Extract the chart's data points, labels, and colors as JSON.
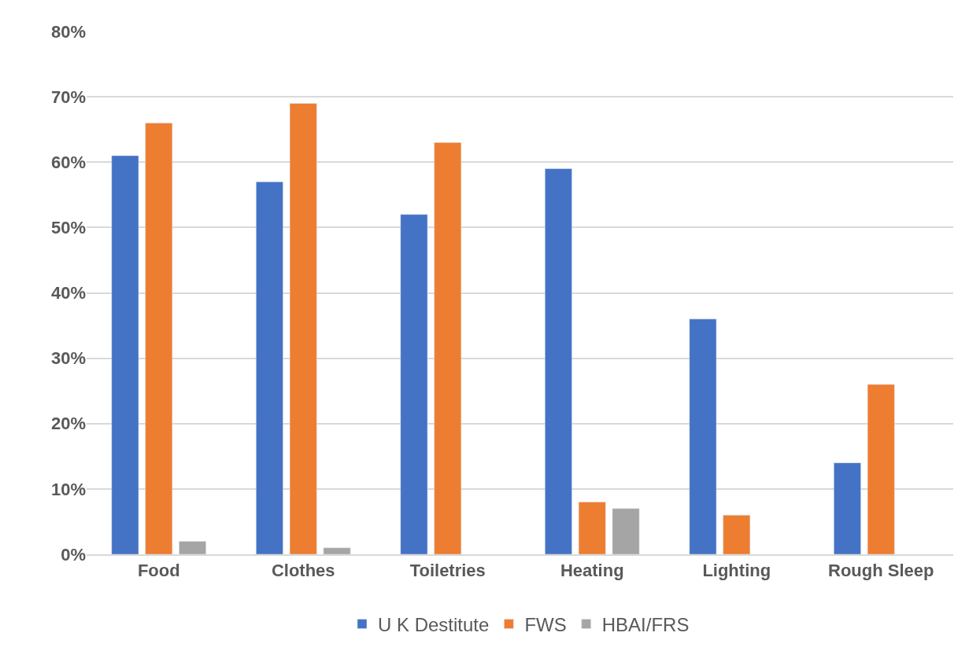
{
  "chart_data": {
    "type": "bar",
    "categories": [
      "Food",
      "Clothes",
      "Toiletries",
      "Heating",
      "Lighting",
      "Rough Sleep"
    ],
    "series": [
      {
        "name": "U K Destitute",
        "color": "#4472c4",
        "values": [
          61,
          57,
          52,
          59,
          36,
          14
        ]
      },
      {
        "name": "FWS",
        "color": "#ed7d31",
        "values": [
          66,
          69,
          63,
          8,
          6,
          26
        ]
      },
      {
        "name": "HBAI/FRS",
        "color": "#a5a5a5",
        "values": [
          2,
          1,
          null,
          7,
          null,
          null
        ]
      }
    ],
    "ylim": [
      0,
      80
    ],
    "yticks": [
      {
        "value": 0,
        "label": "0%"
      },
      {
        "value": 10,
        "label": "10%"
      },
      {
        "value": 20,
        "label": "20%"
      },
      {
        "value": 30,
        "label": "30%"
      },
      {
        "value": 40,
        "label": "40%"
      },
      {
        "value": 50,
        "label": "50%"
      },
      {
        "value": 60,
        "label": "60%"
      },
      {
        "value": 70,
        "label": "70%"
      },
      {
        "value": 80,
        "label": "80%"
      }
    ],
    "grid": "y",
    "legend": "bottom"
  }
}
